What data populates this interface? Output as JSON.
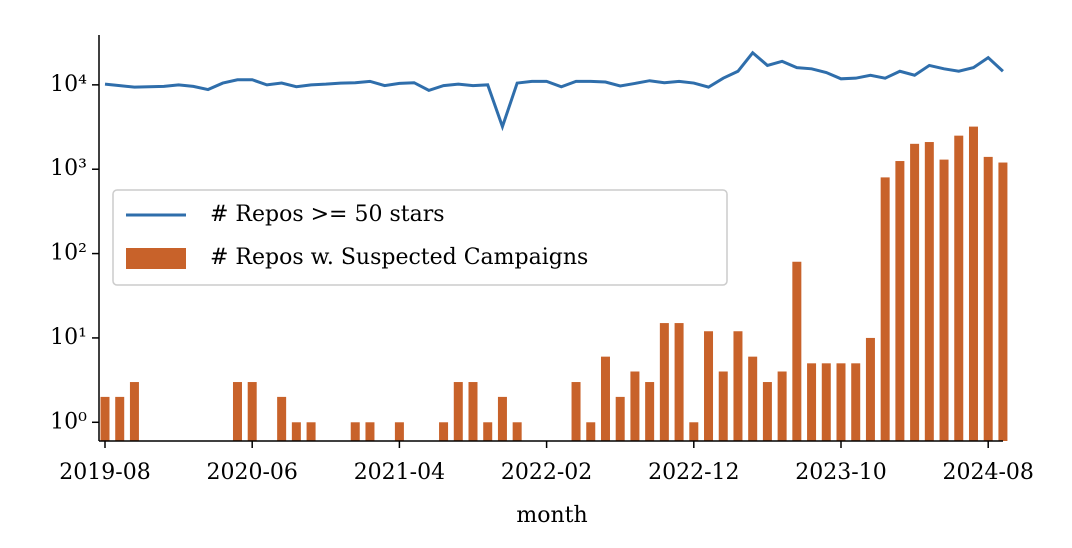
{
  "chart_data": {
    "type": "bar-line",
    "categories": [
      "2019-08",
      null,
      null,
      null,
      null,
      null,
      null,
      null,
      null,
      null,
      "2020-06",
      null,
      null,
      null,
      null,
      null,
      null,
      null,
      null,
      null,
      "2021-04",
      null,
      null,
      null,
      null,
      null,
      null,
      null,
      null,
      null,
      "2022-02",
      null,
      null,
      null,
      null,
      null,
      null,
      null,
      null,
      null,
      "2022-12",
      null,
      null,
      null,
      null,
      null,
      null,
      null,
      null,
      null,
      "2023-10",
      null,
      null,
      null,
      null,
      null,
      null,
      null,
      null,
      null,
      "2024-08",
      null
    ],
    "series": [
      {
        "name": "# Repos >= 50 stars",
        "type": "line",
        "color": "#2f6eab",
        "values": [
          10200,
          9800,
          9400,
          9500,
          9600,
          10000,
          9600,
          8800,
          10500,
          11500,
          11500,
          10000,
          10500,
          9500,
          10000,
          10200,
          10500,
          10600,
          11000,
          9800,
          10400,
          10600,
          8600,
          9800,
          10200,
          9800,
          10000,
          3200,
          10500,
          11000,
          11000,
          9500,
          11000,
          11000,
          10800,
          9700,
          10400,
          11200,
          10600,
          11000,
          10500,
          9400,
          12000,
          14500,
          24000,
          17000,
          19000,
          16000,
          15500,
          14000,
          11800,
          12000,
          13000,
          12000,
          14500,
          13000,
          17000,
          15500,
          14500,
          16000,
          21000,
          14500
        ]
      },
      {
        "name": "# Repos w. Suspected Campaigns",
        "type": "bar",
        "color": "#c8622a",
        "values": [
          2,
          2,
          3,
          null,
          null,
          null,
          null,
          null,
          null,
          3,
          3,
          null,
          2,
          1,
          1,
          null,
          null,
          1,
          1,
          null,
          1,
          null,
          null,
          1,
          3,
          3,
          1,
          2,
          1,
          null,
          null,
          null,
          3,
          1,
          6,
          2,
          4,
          3,
          15,
          15,
          1,
          12,
          4,
          12,
          6,
          3,
          4,
          80,
          5,
          5,
          5,
          5,
          10,
          800,
          1250,
          2000,
          2100,
          1300,
          2500,
          3200,
          1400,
          1200
        ]
      }
    ],
    "x_label": "month",
    "log_y": true,
    "ylim": [
      0.6,
      39000
    ],
    "yticks": [
      {
        "value": 1,
        "label": "10⁰"
      },
      {
        "value": 10,
        "label": "10¹"
      },
      {
        "value": 100,
        "label": "10²"
      },
      {
        "value": 1000,
        "label": "10³"
      },
      {
        "value": 10000,
        "label": "10⁴"
      }
    ],
    "legend": "center-left"
  }
}
